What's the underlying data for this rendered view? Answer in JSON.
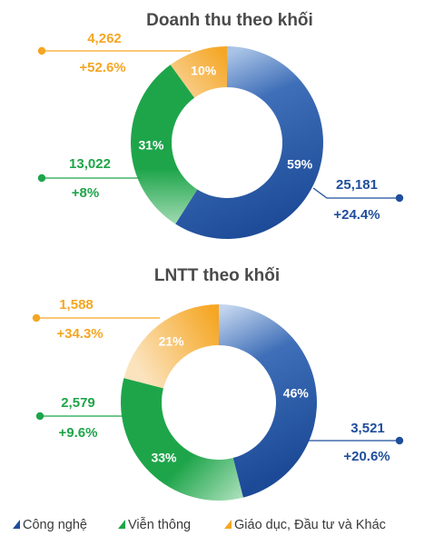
{
  "chart_data": [
    {
      "type": "pie",
      "donut": true,
      "title": "Doanh thu theo khối",
      "categories": [
        "Công nghệ",
        "Viễn thông",
        "Giáo dục, Đầu tư và Khác"
      ],
      "values": [
        59,
        31,
        10
      ],
      "value_labels": [
        "59%",
        "31%",
        "10%"
      ],
      "callouts": [
        {
          "series": "Công nghệ",
          "value": "25,181",
          "change": "+24.4%"
        },
        {
          "series": "Viễn thông",
          "value": "13,022",
          "change": "+8%"
        },
        {
          "series": "Giáo dục, Đầu tư và Khác",
          "value": "4,262",
          "change": "+52.6%"
        }
      ]
    },
    {
      "type": "pie",
      "donut": true,
      "title": "LNTT theo khối",
      "categories": [
        "Công nghệ",
        "Viễn thông",
        "Giáo dục, Đầu tư và Khác"
      ],
      "values": [
        46,
        33,
        21
      ],
      "value_labels": [
        "46%",
        "33%",
        "21%"
      ],
      "callouts": [
        {
          "series": "Công nghệ",
          "value": "3,521",
          "change": "+20.6%"
        },
        {
          "series": "Viễn thông",
          "value": "2,579",
          "change": "+9.6%"
        },
        {
          "series": "Giáo dục, Đầu tư và Khác",
          "value": "1,588",
          "change": "+34.3%"
        }
      ]
    }
  ],
  "legend": {
    "position": "bottom",
    "items": [
      {
        "label": "Công nghệ",
        "color": "#1f4e9c"
      },
      {
        "label": "Viễn thông",
        "color": "#1ea54a"
      },
      {
        "label": "Giáo dục, Đầu tư và Khác",
        "color": "#f5a623"
      }
    ]
  },
  "colors": {
    "Công nghệ": "#1f4e9c",
    "Viễn thông": "#1ea54a",
    "Giáo dục, Đầu tư và Khác": "#f5a623",
    "title": "#4a4a4a"
  }
}
